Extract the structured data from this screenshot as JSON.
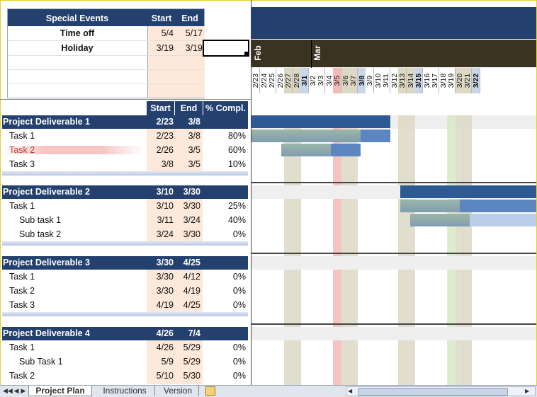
{
  "special_events": {
    "header": {
      "title": "Special Events",
      "start": "Start",
      "end": "End"
    },
    "rows": [
      {
        "name": "Time off",
        "start": "5/4",
        "end": "5/17"
      },
      {
        "name": "Holiday",
        "start": "3/19",
        "end": "3/19"
      }
    ]
  },
  "columns": {
    "start": "Start",
    "end": "End",
    "pct": "% Compl."
  },
  "months": [
    "Feb",
    "Mar"
  ],
  "dates": [
    "2/23",
    "2/24",
    "2/25",
    "2/26",
    "2/27",
    "2/28",
    "3/1",
    "3/2",
    "3/3",
    "3/4",
    "3/5",
    "3/6",
    "3/7",
    "3/8",
    "3/9",
    "3/10",
    "3/11",
    "3/12",
    "3/13",
    "3/14",
    "3/15",
    "3/16",
    "3/17",
    "3/18",
    "3/19",
    "3/20",
    "3/21",
    "3/22"
  ],
  "deliverables": [
    {
      "name": "Project Deliverable 1",
      "start": "2/23",
      "end": "3/8",
      "tasks": [
        {
          "name": "Task 1",
          "start": "2/23",
          "end": "3/8",
          "pct": "80%"
        },
        {
          "name": "Task 2",
          "start": "2/26",
          "end": "3/5",
          "pct": "60%"
        },
        {
          "name": "Task 3",
          "start": "3/8",
          "end": "3/5",
          "pct": "10%"
        }
      ]
    },
    {
      "name": "Project Deliverable 2",
      "start": "3/10",
      "end": "3/30",
      "tasks": [
        {
          "name": "Task 1",
          "start": "3/10",
          "end": "3/30",
          "pct": "25%"
        },
        {
          "name": "Sub task 1",
          "start": "3/11",
          "end": "3/24",
          "pct": "40%"
        },
        {
          "name": "Sub task 2",
          "start": "3/24",
          "end": "3/30",
          "pct": "0%"
        }
      ]
    },
    {
      "name": "Project Deliverable 3",
      "start": "3/30",
      "end": "4/25",
      "tasks": [
        {
          "name": "Task 1",
          "start": "3/30",
          "end": "4/12",
          "pct": "0%"
        },
        {
          "name": "Task 2",
          "start": "3/30",
          "end": "4/19",
          "pct": "0%"
        },
        {
          "name": "Task 3",
          "start": "4/19",
          "end": "4/25",
          "pct": "0%"
        }
      ]
    },
    {
      "name": "Project Deliverable 4",
      "start": "4/26",
      "end": "7/4",
      "tasks": [
        {
          "name": "Task 1",
          "start": "4/26",
          "end": "5/29",
          "pct": "0%"
        },
        {
          "name": "Sub Task 1",
          "start": "5/9",
          "end": "5/29",
          "pct": "0%"
        },
        {
          "name": "Task 2",
          "start": "5/10",
          "end": "5/30",
          "pct": "0%"
        }
      ]
    }
  ],
  "sheet_tabs": [
    "Project Plan",
    "Instructions",
    "Version"
  ],
  "colors": {
    "header": "#23406e",
    "date_cell": "#fde9d9",
    "weekend": "#ddd8c4",
    "today": "#f4b9b9",
    "holiday": "#d6e9c6",
    "bar_dark": "#2e5a94",
    "bar_mid": "#5b86c1",
    "bar_done": "#8aa7b5",
    "bar_light": "#b9cde8"
  }
}
